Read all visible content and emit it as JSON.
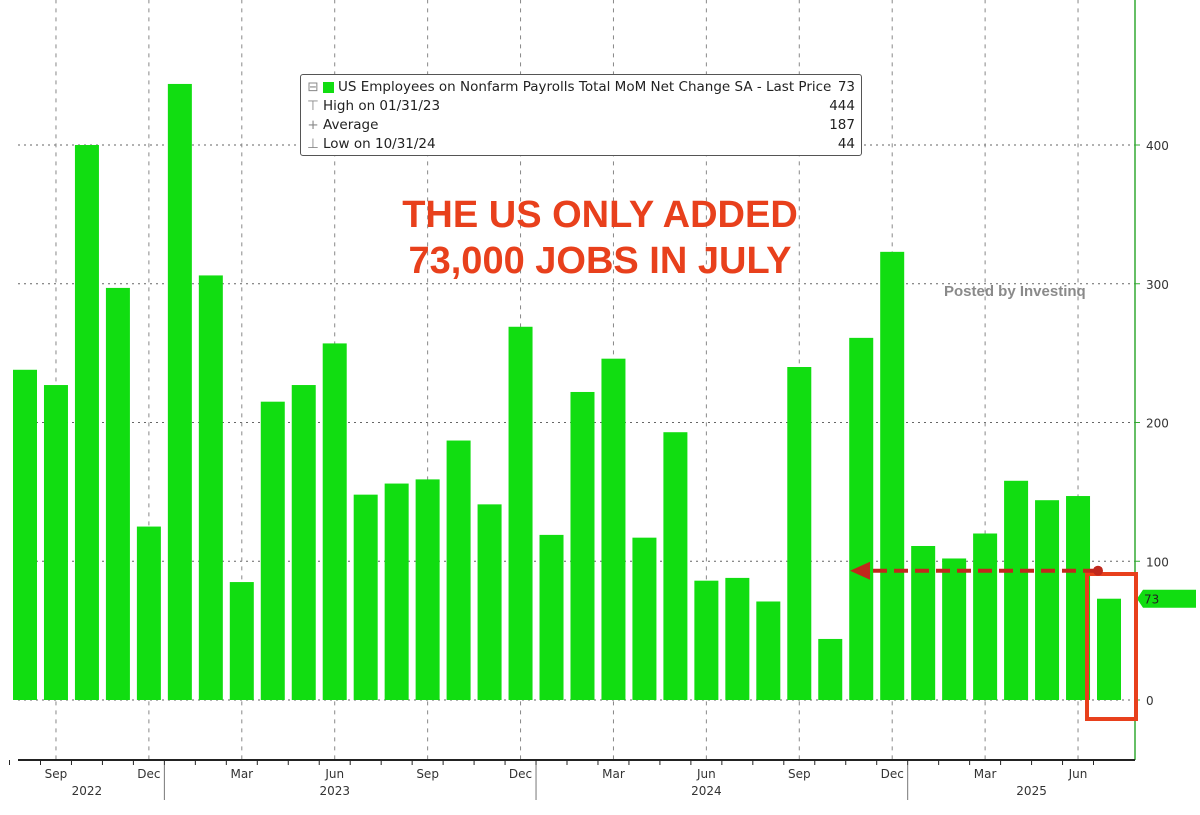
{
  "chart_data": {
    "type": "bar",
    "title": "US Employees on Nonfarm Payrolls Total MoM Net Change SA",
    "categories": [
      "Aug 2022",
      "Sep 2022",
      "Oct 2022",
      "Nov 2022",
      "Dec 2022",
      "Jan 2023",
      "Feb 2023",
      "Mar 2023",
      "Apr 2023",
      "May 2023",
      "Jun 2023",
      "Jul 2023",
      "Aug 2023",
      "Sep 2023",
      "Oct 2023",
      "Nov 2023",
      "Dec 2023",
      "Jan 2024",
      "Feb 2024",
      "Mar 2024",
      "Apr 2024",
      "May 2024",
      "Jun 2024",
      "Jul 2024",
      "Aug 2024",
      "Sep 2024",
      "Oct 2024",
      "Nov 2024",
      "Dec 2024",
      "Jan 2025",
      "Feb 2025",
      "Mar 2025",
      "Apr 2025",
      "May 2025",
      "Jun 2025",
      "Jul 2025"
    ],
    "values": [
      238,
      227,
      400,
      297,
      125,
      444,
      306,
      85,
      215,
      227,
      257,
      148,
      156,
      159,
      187,
      141,
      269,
      119,
      222,
      246,
      117,
      193,
      86,
      88,
      71,
      240,
      44,
      261,
      323,
      111,
      102,
      120,
      158,
      144,
      147,
      73
    ],
    "ylim": [
      -45,
      505
    ],
    "yticks": [
      0,
      100,
      200,
      300,
      400
    ],
    "xtick_labels": [
      {
        "i": 1,
        "label": "Sep"
      },
      {
        "i": 4,
        "label": "Dec"
      },
      {
        "i": 7,
        "label": "Mar"
      },
      {
        "i": 10,
        "label": "Jun"
      },
      {
        "i": 13,
        "label": "Sep"
      },
      {
        "i": 16,
        "label": "Dec"
      },
      {
        "i": 19,
        "label": "Mar"
      },
      {
        "i": 22,
        "label": "Jun"
      },
      {
        "i": 25,
        "label": "Sep"
      },
      {
        "i": 28,
        "label": "Dec"
      },
      {
        "i": 31,
        "label": "Mar"
      },
      {
        "i": 34,
        "label": "Jun"
      }
    ],
    "year_labels": [
      {
        "i": 2,
        "label": "2022"
      },
      {
        "i": 10,
        "label": "2023"
      },
      {
        "i": 22,
        "label": "2024"
      },
      {
        "i": 32.5,
        "label": "2025"
      }
    ],
    "year_dividers": [
      4.5,
      16.5,
      28.5
    ],
    "grid": true,
    "y_axis_side": "right",
    "last_value_label": "73",
    "legend": {
      "position": "top-center",
      "series_label": "US Employees on Nonfarm Payrolls Total MoM Net Change SA - Last Price",
      "series_value": "73",
      "high_label": "High on 01/31/23",
      "high_value": "444",
      "avg_label": "Average",
      "avg_value": "187",
      "low_label": "Low on 10/31/24",
      "low_value": "44"
    },
    "annotation": {
      "line1": "THE US ONLY ADDED",
      "line2": "73,000 JOBS IN JULY"
    },
    "watermark": "Posted by Investinq",
    "colors": {
      "bar": "#11dd11",
      "annotation": "#e8401c",
      "axis": "#33aa33"
    }
  }
}
